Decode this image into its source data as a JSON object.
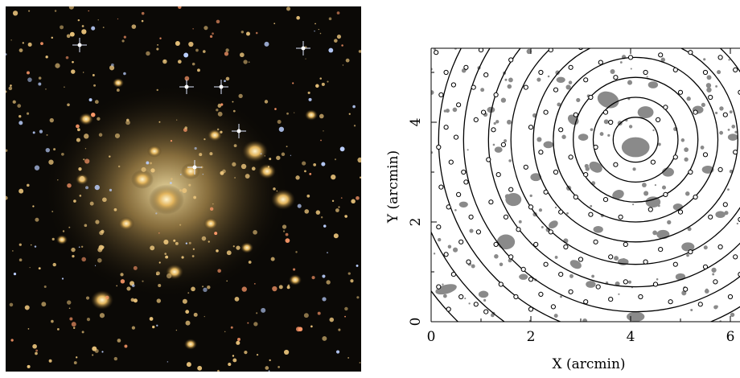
{
  "photo": {
    "icon": "galaxy-cluster-image"
  },
  "chart_data": {
    "type": "scatter",
    "xlabel": "X (arcmin)",
    "ylabel": "Y (arcmin)",
    "xlim": [
      0,
      6.3
    ],
    "ylim": [
      0,
      5.6
    ],
    "xticks": [
      "0",
      "2",
      "4",
      "6"
    ],
    "yticks": [
      "0",
      "2",
      "4"
    ],
    "center": {
      "x": 4.1,
      "y": 3.65
    },
    "rings_radius": [
      0.45,
      0.85,
      1.25,
      1.65,
      2.05,
      2.5,
      2.95,
      3.45,
      3.95,
      4.5,
      5.1
    ],
    "colors": {
      "galaxy_fill": "#8a8a8a",
      "ring_stroke": "#000000",
      "point_stroke": "#000000"
    },
    "series": [
      {
        "marker": "open-circle",
        "points": [
          [
            0.1,
            5.4
          ],
          [
            0.3,
            5.0
          ],
          [
            0.45,
            4.75
          ],
          [
            0.2,
            4.55
          ],
          [
            0.55,
            4.35
          ],
          [
            0.7,
            5.1
          ],
          [
            0.85,
            4.7
          ],
          [
            0.3,
            3.9
          ],
          [
            0.5,
            3.7
          ],
          [
            0.15,
            3.5
          ],
          [
            0.4,
            3.2
          ],
          [
            0.65,
            3.0
          ],
          [
            0.2,
            2.7
          ],
          [
            0.55,
            2.55
          ],
          [
            0.35,
            2.3
          ],
          [
            0.8,
            2.1
          ],
          [
            0.15,
            1.9
          ],
          [
            0.6,
            1.6
          ],
          [
            0.3,
            1.35
          ],
          [
            0.75,
            1.2
          ],
          [
            0.45,
            0.95
          ],
          [
            0.15,
            0.7
          ],
          [
            0.6,
            0.5
          ],
          [
            0.35,
            0.25
          ],
          [
            0.9,
            0.35
          ],
          [
            1.1,
            4.95
          ],
          [
            1.3,
            4.55
          ],
          [
            1.05,
            4.2
          ],
          [
            1.25,
            3.85
          ],
          [
            1.45,
            3.55
          ],
          [
            1.15,
            3.25
          ],
          [
            1.35,
            2.95
          ],
          [
            1.6,
            2.65
          ],
          [
            1.2,
            2.4
          ],
          [
            1.5,
            2.1
          ],
          [
            1.75,
            1.85
          ],
          [
            1.3,
            1.55
          ],
          [
            1.6,
            1.3
          ],
          [
            1.85,
            1.05
          ],
          [
            1.4,
            0.75
          ],
          [
            1.7,
            0.5
          ],
          [
            2.0,
            0.25
          ],
          [
            2.2,
            0.55
          ],
          [
            2.45,
            0.3
          ],
          [
            2.0,
            0.85
          ],
          [
            2.3,
            1.15
          ],
          [
            2.6,
            0.95
          ],
          [
            2.8,
            0.6
          ],
          [
            3.1,
            0.4
          ],
          [
            3.35,
            0.7
          ],
          [
            3.6,
            0.45
          ],
          [
            3.9,
            0.8
          ],
          [
            4.2,
            0.5
          ],
          [
            4.5,
            0.75
          ],
          [
            4.8,
            0.4
          ],
          [
            5.1,
            0.65
          ],
          [
            5.4,
            0.35
          ],
          [
            5.7,
            0.8
          ],
          [
            6.0,
            0.5
          ],
          [
            6.2,
            0.95
          ],
          [
            2.1,
            1.55
          ],
          [
            2.4,
            1.8
          ],
          [
            2.7,
            1.5
          ],
          [
            3.0,
            1.25
          ],
          [
            3.3,
            1.6
          ],
          [
            3.6,
            1.3
          ],
          [
            3.9,
            1.55
          ],
          [
            4.3,
            1.2
          ],
          [
            4.6,
            1.45
          ],
          [
            4.9,
            1.15
          ],
          [
            5.2,
            1.4
          ],
          [
            5.5,
            1.1
          ],
          [
            5.8,
            1.5
          ],
          [
            6.1,
            1.3
          ],
          [
            2.0,
            2.3
          ],
          [
            2.3,
            2.6
          ],
          [
            2.6,
            2.2
          ],
          [
            2.9,
            2.5
          ],
          [
            3.2,
            2.15
          ],
          [
            3.5,
            2.45
          ],
          [
            3.8,
            2.1
          ],
          [
            4.4,
            2.25
          ],
          [
            4.7,
            2.55
          ],
          [
            5.0,
            2.2
          ],
          [
            5.3,
            2.5
          ],
          [
            5.6,
            2.1
          ],
          [
            5.9,
            2.35
          ],
          [
            6.2,
            2.05
          ],
          [
            1.9,
            3.1
          ],
          [
            2.2,
            3.4
          ],
          [
            2.5,
            3.0
          ],
          [
            2.8,
            3.3
          ],
          [
            3.1,
            2.95
          ],
          [
            3.3,
            3.5
          ],
          [
            4.9,
            3.3
          ],
          [
            5.2,
            3.0
          ],
          [
            5.5,
            3.35
          ],
          [
            5.8,
            3.05
          ],
          [
            6.1,
            3.4
          ],
          [
            2.0,
            3.9
          ],
          [
            2.3,
            4.2
          ],
          [
            2.6,
            3.85
          ],
          [
            2.9,
            4.15
          ],
          [
            3.2,
            4.5
          ],
          [
            3.5,
            4.2
          ],
          [
            4.7,
            4.3
          ],
          [
            5.0,
            4.6
          ],
          [
            5.3,
            4.2
          ],
          [
            5.6,
            4.5
          ],
          [
            5.9,
            4.15
          ],
          [
            6.2,
            4.6
          ],
          [
            1.9,
            4.7
          ],
          [
            2.2,
            5.0
          ],
          [
            2.5,
            4.65
          ],
          [
            2.8,
            5.1
          ],
          [
            3.1,
            4.85
          ],
          [
            3.4,
            5.2
          ],
          [
            3.7,
            4.9
          ],
          [
            4.0,
            5.3
          ],
          [
            4.3,
            5.0
          ],
          [
            4.6,
            5.35
          ],
          [
            4.9,
            5.05
          ],
          [
            5.2,
            5.4
          ],
          [
            5.5,
            5.0
          ],
          [
            5.8,
            5.3
          ],
          [
            6.1,
            5.05
          ],
          [
            3.7,
            3.15
          ],
          [
            4.45,
            3.2
          ],
          [
            3.6,
            4.0
          ],
          [
            4.55,
            4.05
          ],
          [
            1.0,
            5.45
          ],
          [
            1.6,
            5.25
          ],
          [
            2.4,
            5.45
          ],
          [
            3.0,
            5.5
          ],
          [
            0.95,
            1.8
          ],
          [
            1.1,
            0.2
          ],
          [
            0.7,
            2.8
          ],
          [
            0.9,
            4.05
          ]
        ]
      }
    ]
  },
  "blobs": [
    [
      4.1,
      3.5,
      0.28,
      0.2,
      0
    ],
    [
      3.55,
      4.45,
      0.22,
      0.16,
      20
    ],
    [
      4.3,
      4.2,
      0.16,
      0.12,
      0
    ],
    [
      3.3,
      3.1,
      0.14,
      0.1,
      30
    ],
    [
      4.75,
      3.0,
      0.12,
      0.09,
      0
    ],
    [
      1.65,
      2.45,
      0.16,
      0.13,
      0
    ],
    [
      1.5,
      1.6,
      0.18,
      0.15,
      0
    ],
    [
      4.45,
      2.4,
      0.15,
      0.11,
      0
    ],
    [
      3.75,
      2.55,
      0.12,
      0.09,
      -20
    ],
    [
      4.65,
      1.75,
      0.13,
      0.09,
      0
    ],
    [
      2.85,
      4.05,
      0.12,
      0.09,
      40
    ],
    [
      3.05,
      3.7,
      0.1,
      0.07,
      0
    ],
    [
      5.15,
      1.5,
      0.13,
      0.09,
      0
    ],
    [
      2.1,
      2.9,
      0.11,
      0.08,
      0
    ],
    [
      4.1,
      0.1,
      0.18,
      0.1,
      0
    ],
    [
      0.3,
      0.65,
      0.22,
      0.09,
      -15
    ],
    [
      2.35,
      3.55,
      0.1,
      0.07,
      0
    ],
    [
      5.55,
      3.05,
      0.12,
      0.08,
      0
    ],
    [
      1.05,
      0.55,
      0.1,
      0.07,
      0
    ],
    [
      2.9,
      1.15,
      0.12,
      0.08,
      25
    ],
    [
      3.35,
      1.85,
      0.1,
      0.07,
      0
    ],
    [
      5.35,
      4.25,
      0.11,
      0.08,
      0
    ],
    [
      4.95,
      2.3,
      0.1,
      0.07,
      0
    ],
    [
      3.85,
      1.2,
      0.11,
      0.07,
      0
    ],
    [
      2.45,
      1.95,
      0.1,
      0.07,
      -30
    ],
    [
      4.45,
      4.75,
      0.1,
      0.07,
      0
    ],
    [
      5.8,
      2.15,
      0.1,
      0.07,
      0
    ],
    [
      1.85,
      0.9,
      0.09,
      0.06,
      0
    ],
    [
      6.05,
      3.7,
      0.1,
      0.07,
      0
    ],
    [
      2.6,
      4.85,
      0.09,
      0.06,
      0
    ],
    [
      1.35,
      3.45,
      0.08,
      0.06,
      0
    ],
    [
      0.65,
      2.35,
      0.09,
      0.06,
      0
    ],
    [
      3.2,
      0.75,
      0.1,
      0.07,
      0
    ],
    [
      5.0,
      0.9,
      0.1,
      0.07,
      0
    ],
    [
      1.2,
      4.25,
      0.08,
      0.06,
      0
    ]
  ]
}
